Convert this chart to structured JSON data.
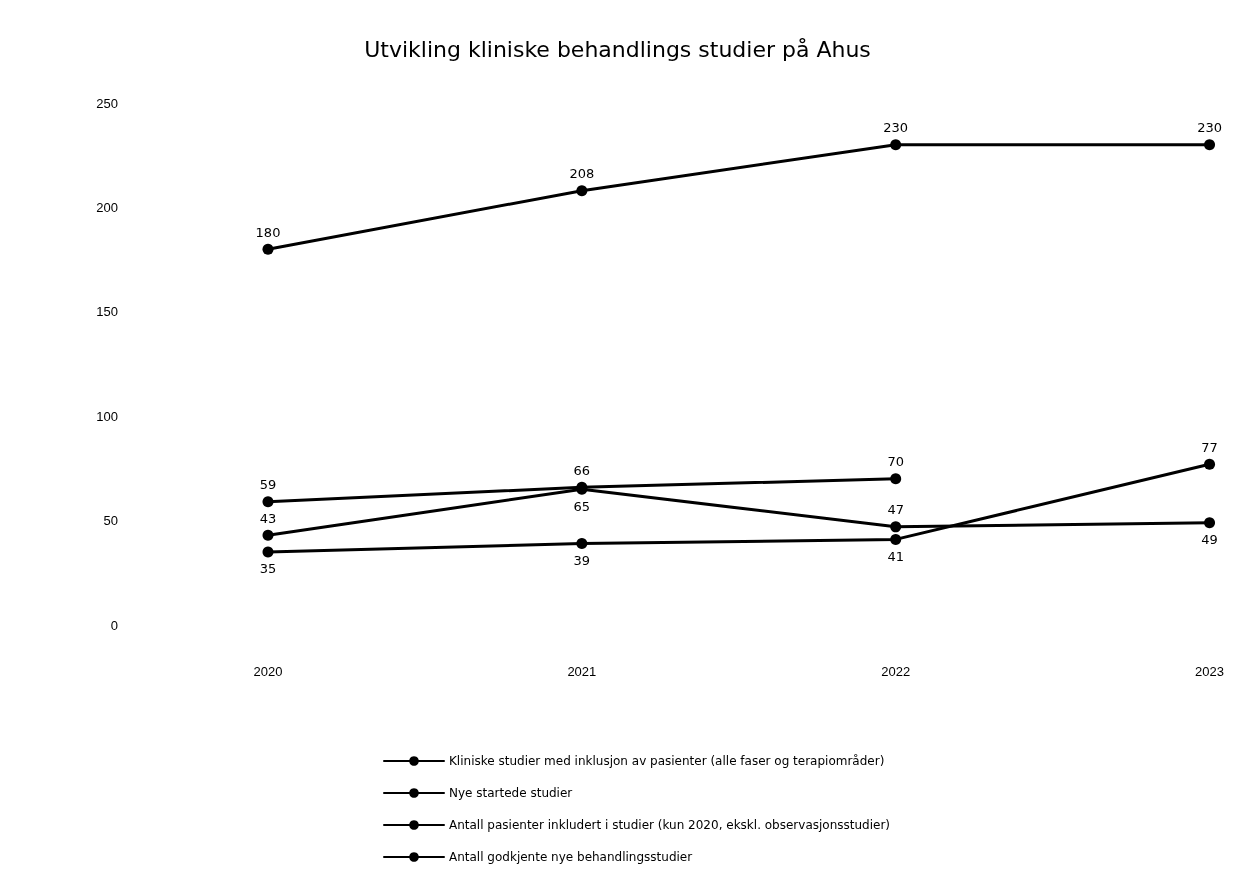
{
  "chart_data": {
    "type": "line",
    "title": "Utvikling kliniske behandlings studier på Ahus",
    "categories": [
      "2020",
      "2021",
      "2022",
      "2023"
    ],
    "series": [
      {
        "name": "Kliniske studier med inklusjon av pasienter (alle faser og terapiområder)",
        "color": "#000000",
        "values": [
          180,
          208,
          230,
          230
        ]
      },
      {
        "name": "Nye startede studier",
        "color": "#000000",
        "values": [
          59,
          66,
          70,
          null
        ]
      },
      {
        "name": "Antall pasienter inkludert i studier (kun 2020, ekskl. observasjonsstudier)",
        "color": "#000000",
        "values": [
          43,
          65,
          47,
          49
        ]
      },
      {
        "name": "Antall godkjente nye behandlingsstudier",
        "color": "#000000",
        "values": [
          35,
          39,
          41,
          77
        ]
      }
    ],
    "ylim": [
      0,
      250
    ],
    "yticks": [
      0,
      50,
      100,
      150,
      200,
      250
    ],
    "grid": false,
    "legend": "bottom",
    "marker": "circle",
    "line_style": "solid",
    "data_labels": true
  }
}
